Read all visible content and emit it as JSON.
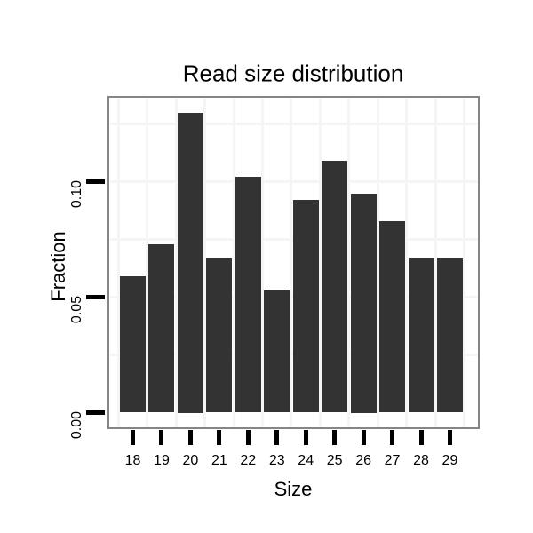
{
  "chart_data": {
    "type": "bar",
    "title": "Read size distribution",
    "xlabel": "Size",
    "ylabel": "Fraction",
    "categories": [
      18,
      19,
      20,
      21,
      22,
      23,
      24,
      25,
      26,
      27,
      28,
      29
    ],
    "values": [
      0.059,
      0.073,
      0.13,
      0.067,
      0.102,
      0.053,
      0.092,
      0.109,
      0.095,
      0.083,
      0.067,
      0.067
    ],
    "y_ticks": [
      {
        "value": 0.0,
        "label": "0.00"
      },
      {
        "value": 0.05,
        "label": "0.05"
      },
      {
        "value": 0.1,
        "label": "0.10"
      }
    ],
    "y_gridlines": [
      0.025,
      0.05,
      0.075,
      0.1,
      0.125
    ],
    "x_minor_gridlines": [
      17.5,
      18.5,
      19.5,
      20.5,
      21.5,
      22.5,
      23.5,
      24.5,
      25.5,
      26.5,
      27.5,
      28.5,
      29.5
    ],
    "ylim": [
      -0.007,
      0.137
    ],
    "grid": "on",
    "legend": "none"
  },
  "colors": {
    "bar_fill": "#333333",
    "panel_border": "#858585",
    "gridline": "#f5f5f5",
    "tick": "#000000",
    "text": "#000000",
    "background": "#ffffff"
  }
}
